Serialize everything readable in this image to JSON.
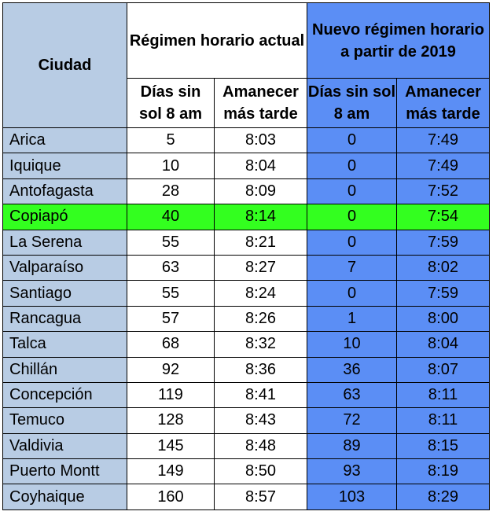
{
  "header": {
    "ciudad": "Ciudad",
    "actual": "Régimen horario actual",
    "nuevo": "Nuevo régimen horario a partir de 2019",
    "dias_sin_sol": "Días sin sol 8 am",
    "amanecer": "Amanecer más tarde"
  },
  "highlight_color": "#33ff1f",
  "rows": [
    {
      "ciudad": "Arica",
      "dias_actual": "5",
      "amanecer_actual": "8:03",
      "dias_nuevo": "0",
      "amanecer_nuevo": "7:49"
    },
    {
      "ciudad": "Iquique",
      "dias_actual": "10",
      "amanecer_actual": "8:04",
      "dias_nuevo": "0",
      "amanecer_nuevo": "7:49"
    },
    {
      "ciudad": "Antofagasta",
      "dias_actual": "28",
      "amanecer_actual": "8:09",
      "dias_nuevo": "0",
      "amanecer_nuevo": "7:52"
    },
    {
      "ciudad": "Copiapó",
      "dias_actual": "40",
      "amanecer_actual": "8:14",
      "dias_nuevo": "0",
      "amanecer_nuevo": "7:54",
      "highlight": true
    },
    {
      "ciudad": "La Serena",
      "dias_actual": "55",
      "amanecer_actual": "8:21",
      "dias_nuevo": "0",
      "amanecer_nuevo": "7:59"
    },
    {
      "ciudad": "Valparaíso",
      "dias_actual": "63",
      "amanecer_actual": "8:27",
      "dias_nuevo": "7",
      "amanecer_nuevo": "8:02"
    },
    {
      "ciudad": "Santiago",
      "dias_actual": "55",
      "amanecer_actual": "8:24",
      "dias_nuevo": "0",
      "amanecer_nuevo": "7:59"
    },
    {
      "ciudad": "Rancagua",
      "dias_actual": "57",
      "amanecer_actual": "8:26",
      "dias_nuevo": "1",
      "amanecer_nuevo": "8:00"
    },
    {
      "ciudad": "Talca",
      "dias_actual": "68",
      "amanecer_actual": "8:32",
      "dias_nuevo": "10",
      "amanecer_nuevo": "8:04"
    },
    {
      "ciudad": "Chillán",
      "dias_actual": "92",
      "amanecer_actual": "8:36",
      "dias_nuevo": "36",
      "amanecer_nuevo": "8:07"
    },
    {
      "ciudad": "Concepción",
      "dias_actual": "119",
      "amanecer_actual": "8:41",
      "dias_nuevo": "63",
      "amanecer_nuevo": "8:11"
    },
    {
      "ciudad": "Temuco",
      "dias_actual": "128",
      "amanecer_actual": "8:43",
      "dias_nuevo": "72",
      "amanecer_nuevo": "8:11"
    },
    {
      "ciudad": "Valdivia",
      "dias_actual": "145",
      "amanecer_actual": "8:48",
      "dias_nuevo": "89",
      "amanecer_nuevo": "8:15"
    },
    {
      "ciudad": "Puerto Montt",
      "dias_actual": "149",
      "amanecer_actual": "8:50",
      "dias_nuevo": "93",
      "amanecer_nuevo": "8:19"
    },
    {
      "ciudad": "Coyhaique",
      "dias_actual": "160",
      "amanecer_actual": "8:57",
      "dias_nuevo": "103",
      "amanecer_nuevo": "8:29"
    }
  ]
}
